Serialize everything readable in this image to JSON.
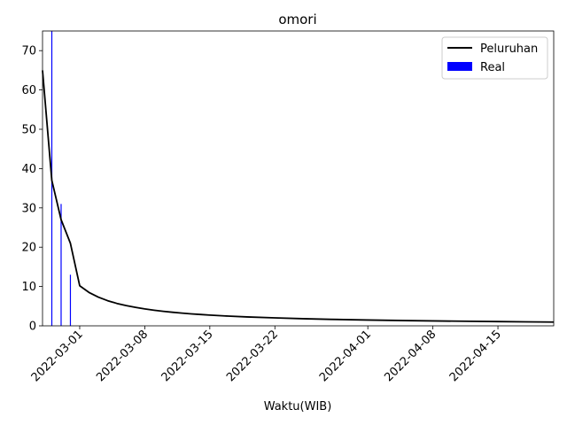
{
  "chart_data": {
    "type": "line",
    "title": "omori",
    "xlabel": "Waktu(WIB)",
    "ylabel": "",
    "x_range": [
      "2022-02-25",
      "2022-04-21"
    ],
    "ylim": [
      0,
      75
    ],
    "x_ticks": [
      "2022-03-01",
      "2022-03-08",
      "2022-03-15",
      "2022-03-22",
      "2022-04-01",
      "2022-04-08",
      "2022-04-15"
    ],
    "y_ticks": [
      0,
      10,
      20,
      30,
      40,
      50,
      60,
      70
    ],
    "grid": false,
    "legend_position": "top-right",
    "series": [
      {
        "name": "Peluruhan",
        "kind": "line",
        "color": "#000000",
        "points": [
          [
            "2022-02-25",
            65.0
          ],
          [
            "2022-02-26",
            37.0
          ],
          [
            "2022-02-27",
            27.0
          ],
          [
            "2022-02-28",
            21.0
          ],
          [
            "2022-03-01",
            10.2
          ],
          [
            "2022-03-02",
            8.5
          ],
          [
            "2022-03-03",
            7.3
          ],
          [
            "2022-03-04",
            6.4
          ],
          [
            "2022-03-05",
            5.7
          ],
          [
            "2022-03-06",
            5.15
          ],
          [
            "2022-03-07",
            4.7
          ],
          [
            "2022-03-08",
            4.3
          ],
          [
            "2022-03-09",
            3.97
          ],
          [
            "2022-03-10",
            3.69
          ],
          [
            "2022-03-11",
            3.45
          ],
          [
            "2022-03-12",
            3.24
          ],
          [
            "2022-03-13",
            3.05
          ],
          [
            "2022-03-14",
            2.88
          ],
          [
            "2022-03-15",
            2.73
          ],
          [
            "2022-03-17",
            2.48
          ],
          [
            "2022-03-19",
            2.27
          ],
          [
            "2022-03-22",
            2.02
          ],
          [
            "2022-03-25",
            1.82
          ],
          [
            "2022-03-28",
            1.65
          ],
          [
            "2022-04-01",
            1.48
          ],
          [
            "2022-04-05",
            1.34
          ],
          [
            "2022-04-08",
            1.25
          ],
          [
            "2022-04-12",
            1.15
          ],
          [
            "2022-04-15",
            1.08
          ],
          [
            "2022-04-18",
            1.02
          ],
          [
            "2022-04-21",
            0.96
          ]
        ]
      },
      {
        "name": "Real",
        "kind": "bar",
        "color": "#0000ff",
        "points": [
          [
            "2022-02-26",
            75.0
          ],
          [
            "2022-02-27",
            31.0
          ],
          [
            "2022-02-28",
            13.0
          ]
        ]
      }
    ]
  }
}
